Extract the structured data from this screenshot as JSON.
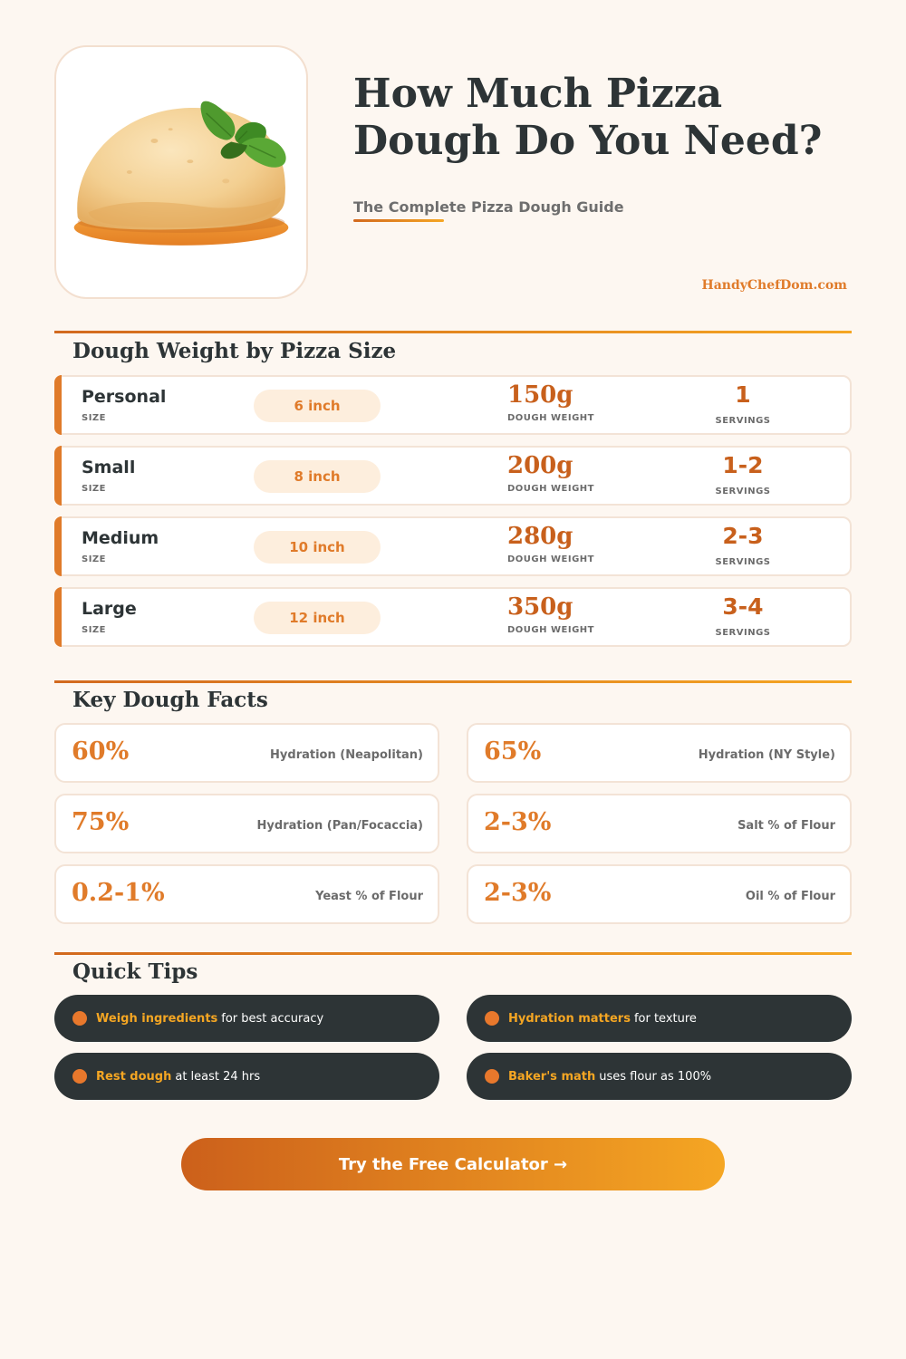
{
  "header": {
    "title_line1": "How Much Pizza",
    "title_line2": "Dough Do You Need?",
    "subtitle": "The Complete Pizza Dough Guide",
    "brand": "HandyChefDom.com",
    "image_icon": "dough-ball-with-basil-icon"
  },
  "sizes": {
    "title": "Dough Weight by Pizza Size",
    "size_label": "SIZE",
    "weight_label": "DOUGH WEIGHT",
    "servings_label": "SERVINGS",
    "rows": [
      {
        "name": "Personal",
        "diameter": "6 inch",
        "weight": "150g",
        "servings": "1"
      },
      {
        "name": "Small",
        "diameter": "8 inch",
        "weight": "200g",
        "servings": "1-2"
      },
      {
        "name": "Medium",
        "diameter": "10 inch",
        "weight": "280g",
        "servings": "2-3"
      },
      {
        "name": "Large",
        "diameter": "12 inch",
        "weight": "350g",
        "servings": "3-4"
      }
    ]
  },
  "facts": {
    "title": "Key Dough Facts",
    "items": [
      {
        "value": "60%",
        "label": "Hydration (Neapolitan)"
      },
      {
        "value": "65%",
        "label": "Hydration (NY Style)"
      },
      {
        "value": "75%",
        "label": "Hydration (Pan/Focaccia)"
      },
      {
        "value": "2-3%",
        "label": "Salt % of Flour"
      },
      {
        "value": "0.2-1%",
        "label": "Yeast % of Flour"
      },
      {
        "value": "2-3%",
        "label": "Oil % of Flour"
      }
    ]
  },
  "tips": {
    "title": "Quick Tips",
    "items": [
      {
        "strong": "Weigh ingredients",
        "rest": "for best accuracy"
      },
      {
        "strong": "Hydration matters",
        "rest": "for texture"
      },
      {
        "strong": "Rest dough",
        "rest": "at least 24 hrs"
      },
      {
        "strong": "Baker's math",
        "rest": "uses flour as 100%"
      }
    ]
  },
  "cta": {
    "label": "Try the Free Calculator →"
  },
  "colors": {
    "accent": "#e07b2a",
    "accent_dark": "#c8601c",
    "accent_light": "#f5a623",
    "dark": "#2d3436",
    "background": "#fdf7f1"
  }
}
